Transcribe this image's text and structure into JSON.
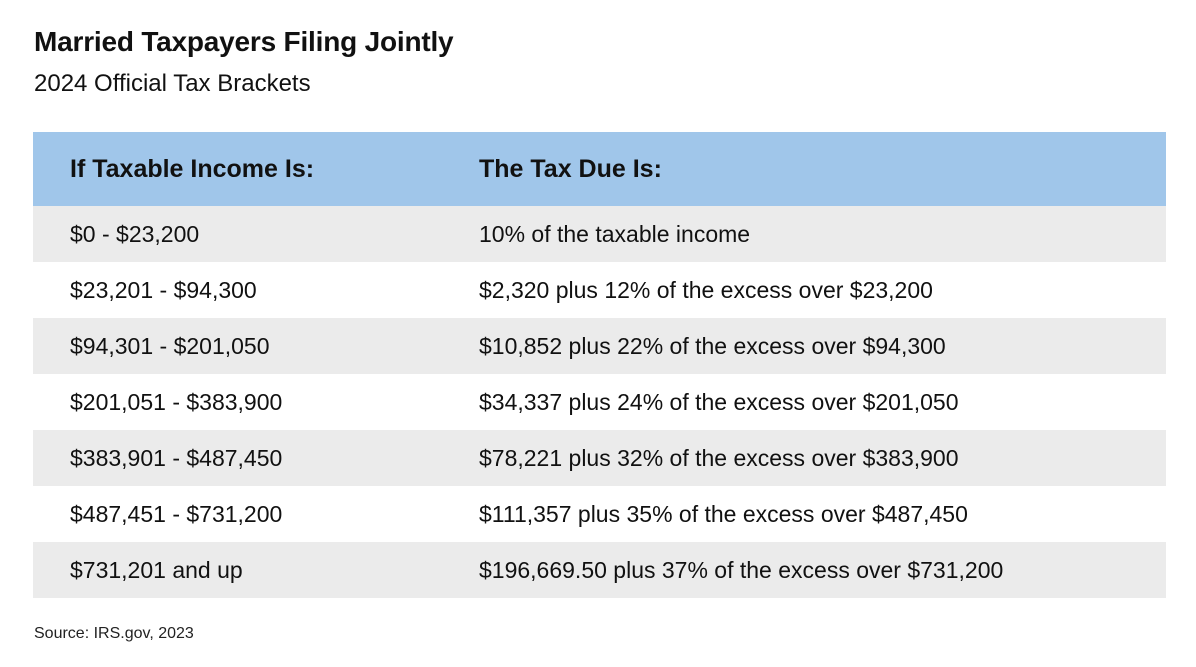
{
  "title": "Married Taxpayers Filing Jointly",
  "subtitle": "2024 Official Tax Brackets",
  "table": {
    "header": {
      "income": "If Taxable Income Is:",
      "tax": "The Tax Due Is:"
    },
    "rows": [
      {
        "income": "$0 - $23,200",
        "tax": "10% of the taxable income"
      },
      {
        "income": "$23,201 - $94,300",
        "tax": "$2,320 plus 12% of the excess over $23,200"
      },
      {
        "income": "$94,301 - $201,050",
        "tax": "$10,852 plus 22% of the excess over $94,300"
      },
      {
        "income": "$201,051 - $383,900",
        "tax": "$34,337 plus 24% of the excess over $201,050"
      },
      {
        "income": "$383,901 - $487,450",
        "tax": "$78,221 plus 32% of the excess over $383,900"
      },
      {
        "income": "$487,451 - $731,200",
        "tax": "$111,357 plus 35% of the excess over $487,450"
      },
      {
        "income": "$731,201 and up",
        "tax": "$196,669.50 plus 37% of the excess over $731,200"
      }
    ]
  },
  "source": "Source: IRS.gov, 2023",
  "colors": {
    "header_bg": "#a0c6ea",
    "row_shaded": "#ebebeb",
    "row_plain": "#ffffff"
  }
}
